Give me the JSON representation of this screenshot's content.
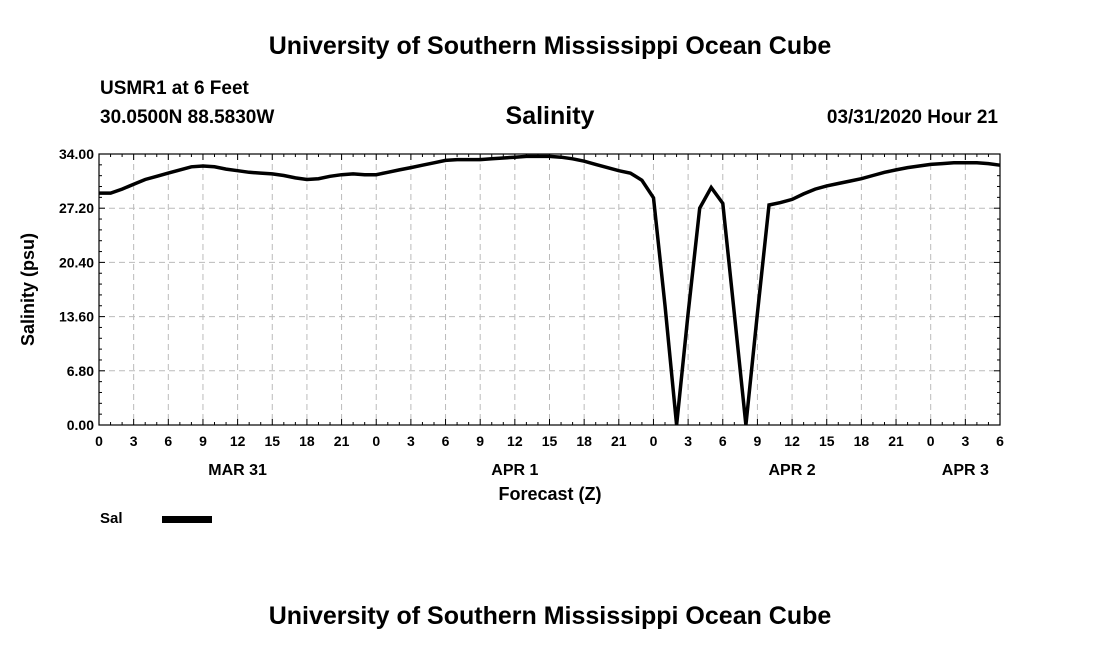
{
  "header": {
    "title": "University of Southern Mississippi Ocean Cube",
    "station": "USMR1 at 6 Feet",
    "coords": "30.0500N 88.5830W",
    "datetime": "03/31/2020 Hour 21"
  },
  "footer": {
    "title": "University of Southern Mississippi Ocean Cube"
  },
  "colors": {
    "line": "#000000",
    "grid": "#bbbbbb",
    "axis": "#000000"
  },
  "chart_data": {
    "type": "line",
    "title": "Salinity",
    "xlabel": "Forecast (Z)",
    "ylabel": "Salinity (psu)",
    "ylim": [
      0,
      34
    ],
    "yticks": [
      "0.00",
      "6.80",
      "13.60",
      "20.40",
      "27.20",
      "34.00"
    ],
    "xlim": [
      0,
      78
    ],
    "x_unit": "hours since 2020-03-31 00Z",
    "x_ticks": [
      0,
      3,
      6,
      9,
      12,
      15,
      18,
      21,
      24,
      27,
      30,
      33,
      36,
      39,
      42,
      45,
      48,
      51,
      54,
      57,
      60,
      63,
      66,
      69,
      72,
      75,
      78
    ],
    "x_tick_labels": [
      "0",
      "3",
      "6",
      "9",
      "12",
      "15",
      "18",
      "21",
      "0",
      "3",
      "6",
      "9",
      "12",
      "15",
      "18",
      "21",
      "0",
      "3",
      "6",
      "9",
      "12",
      "15",
      "18",
      "21",
      "0",
      "3",
      "6"
    ],
    "date_labels": [
      {
        "x": 12,
        "label": "MAR 31"
      },
      {
        "x": 36,
        "label": "APR 1"
      },
      {
        "x": 60,
        "label": "APR 2"
      },
      {
        "x": 75,
        "label": "APR 3"
      }
    ],
    "grid": true,
    "legend": [
      {
        "name": "Sal",
        "position": "bottom-left"
      }
    ],
    "series": [
      {
        "name": "Sal",
        "x": [
          0,
          1,
          2,
          3,
          4,
          5,
          6,
          7,
          8,
          9,
          10,
          11,
          12,
          13,
          14,
          15,
          16,
          17,
          18,
          19,
          20,
          21,
          22,
          23,
          24,
          25,
          26,
          27,
          28,
          29,
          30,
          31,
          32,
          33,
          34,
          35,
          36,
          37,
          38,
          39,
          40,
          41,
          42,
          43,
          44,
          45,
          46,
          47,
          48,
          49,
          50,
          51,
          52,
          53,
          54,
          55,
          56,
          57,
          58,
          59,
          60,
          61,
          62,
          63,
          64,
          65,
          66,
          67,
          68,
          69,
          70,
          71,
          72,
          73,
          74,
          75,
          76,
          77,
          78
        ],
        "values": [
          29.1,
          29.1,
          29.6,
          30.2,
          30.8,
          31.2,
          31.6,
          32.0,
          32.4,
          32.5,
          32.4,
          32.1,
          31.9,
          31.7,
          31.6,
          31.5,
          31.3,
          31.0,
          30.8,
          30.9,
          31.2,
          31.4,
          31.5,
          31.4,
          31.4,
          31.7,
          32.0,
          32.3,
          32.6,
          32.9,
          33.2,
          33.3,
          33.3,
          33.3,
          33.4,
          33.5,
          33.6,
          33.7,
          33.7,
          33.7,
          33.6,
          33.4,
          33.1,
          32.7,
          32.3,
          31.9,
          31.6,
          30.7,
          28.5,
          15.0,
          0.0,
          14.0,
          27.2,
          29.8,
          27.8,
          14.0,
          0.0,
          14.0,
          27.6,
          27.9,
          28.3,
          29.0,
          29.6,
          30.0,
          30.3,
          30.6,
          30.9,
          31.3,
          31.7,
          32.0,
          32.3,
          32.5,
          32.7,
          32.8,
          32.9,
          32.9,
          32.9,
          32.8,
          32.6
        ]
      }
    ]
  }
}
